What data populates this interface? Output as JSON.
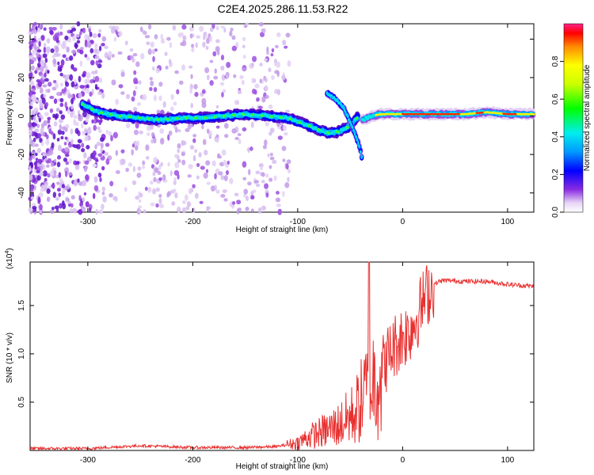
{
  "title": "C2E4.2025.286.11.53.R22",
  "chart_data": [
    {
      "type": "heatmap",
      "name": "spectrogram",
      "xlabel": "Height of straight line (km)",
      "ylabel": "Frequency (Hz)",
      "xlim": [
        -355,
        125
      ],
      "ylim": [
        -50,
        48
      ],
      "xticks": [
        -300,
        -200,
        -100,
        0,
        100
      ],
      "yticks": [
        -40,
        -20,
        0,
        20,
        40
      ],
      "colorbar": {
        "label": "Normalized spectral amplitude",
        "range": [
          0,
          1
        ],
        "ticks": [
          0.0,
          0.2,
          0.4,
          0.6,
          0.8
        ]
      },
      "ridge": {
        "x": [
          -305,
          -290,
          -270,
          -250,
          -230,
          -210,
          -190,
          -170,
          -150,
          -130,
          -110,
          -95,
          -80,
          -70,
          -60,
          -50,
          -42
        ],
        "y": [
          6,
          2,
          0,
          -1,
          -2,
          -1,
          -1,
          0,
          1,
          0,
          -1,
          -4,
          -7,
          -9,
          -8,
          -5,
          0
        ]
      },
      "tail": {
        "x": [
          -72,
          -64,
          -56,
          -50,
          -45,
          -41,
          -38
        ],
        "y": [
          12,
          9,
          4,
          -3,
          -10,
          -16,
          -24
        ]
      },
      "carrier": {
        "x": [
          -38,
          -30,
          -20,
          -10,
          0,
          20,
          40,
          60,
          80,
          100,
          125
        ],
        "y": [
          -2,
          0,
          1,
          1,
          1,
          1,
          1,
          1,
          2,
          1,
          1
        ]
      }
    },
    {
      "type": "line",
      "name": "snr",
      "xlabel": "Height of straight line (km)",
      "ylabel": "SNR (10 * v/v)",
      "y_scale_label": "(x10",
      "y_scale_exponent": "4",
      "xlim": [
        -355,
        125
      ],
      "ylim": [
        0,
        1.95
      ],
      "xticks": [
        -300,
        -200,
        -100,
        0,
        100
      ],
      "yticks": [
        0.5,
        1,
        1.5
      ],
      "ytick_labels": [
        "0.5",
        "1.0",
        "1.5"
      ],
      "color": "#e8302f",
      "series": [
        {
          "name": "SNR",
          "x": [
            -355,
            -300,
            -250,
            -200,
            -150,
            -120,
            -100,
            -90,
            -80,
            -70,
            -60,
            -50,
            -45,
            -40,
            -35,
            -30,
            -25,
            -20,
            -15,
            -10,
            -5,
            0,
            5,
            10,
            15,
            20,
            25,
            30,
            35,
            40,
            60,
            80,
            100,
            110,
            125
          ],
          "y": [
            0.02,
            0.02,
            0.05,
            0.03,
            0.03,
            0.04,
            0.08,
            0.14,
            0.18,
            0.22,
            0.27,
            0.35,
            0.4,
            0.5,
            0.6,
            0.68,
            0.78,
            0.85,
            0.95,
            1.05,
            1.12,
            1.18,
            1.22,
            1.3,
            1.42,
            1.55,
            1.65,
            1.72,
            1.75,
            1.76,
            1.75,
            1.75,
            1.72,
            1.71,
            1.7
          ]
        }
      ],
      "peak": {
        "x": -32,
        "y": 1.95
      }
    }
  ]
}
